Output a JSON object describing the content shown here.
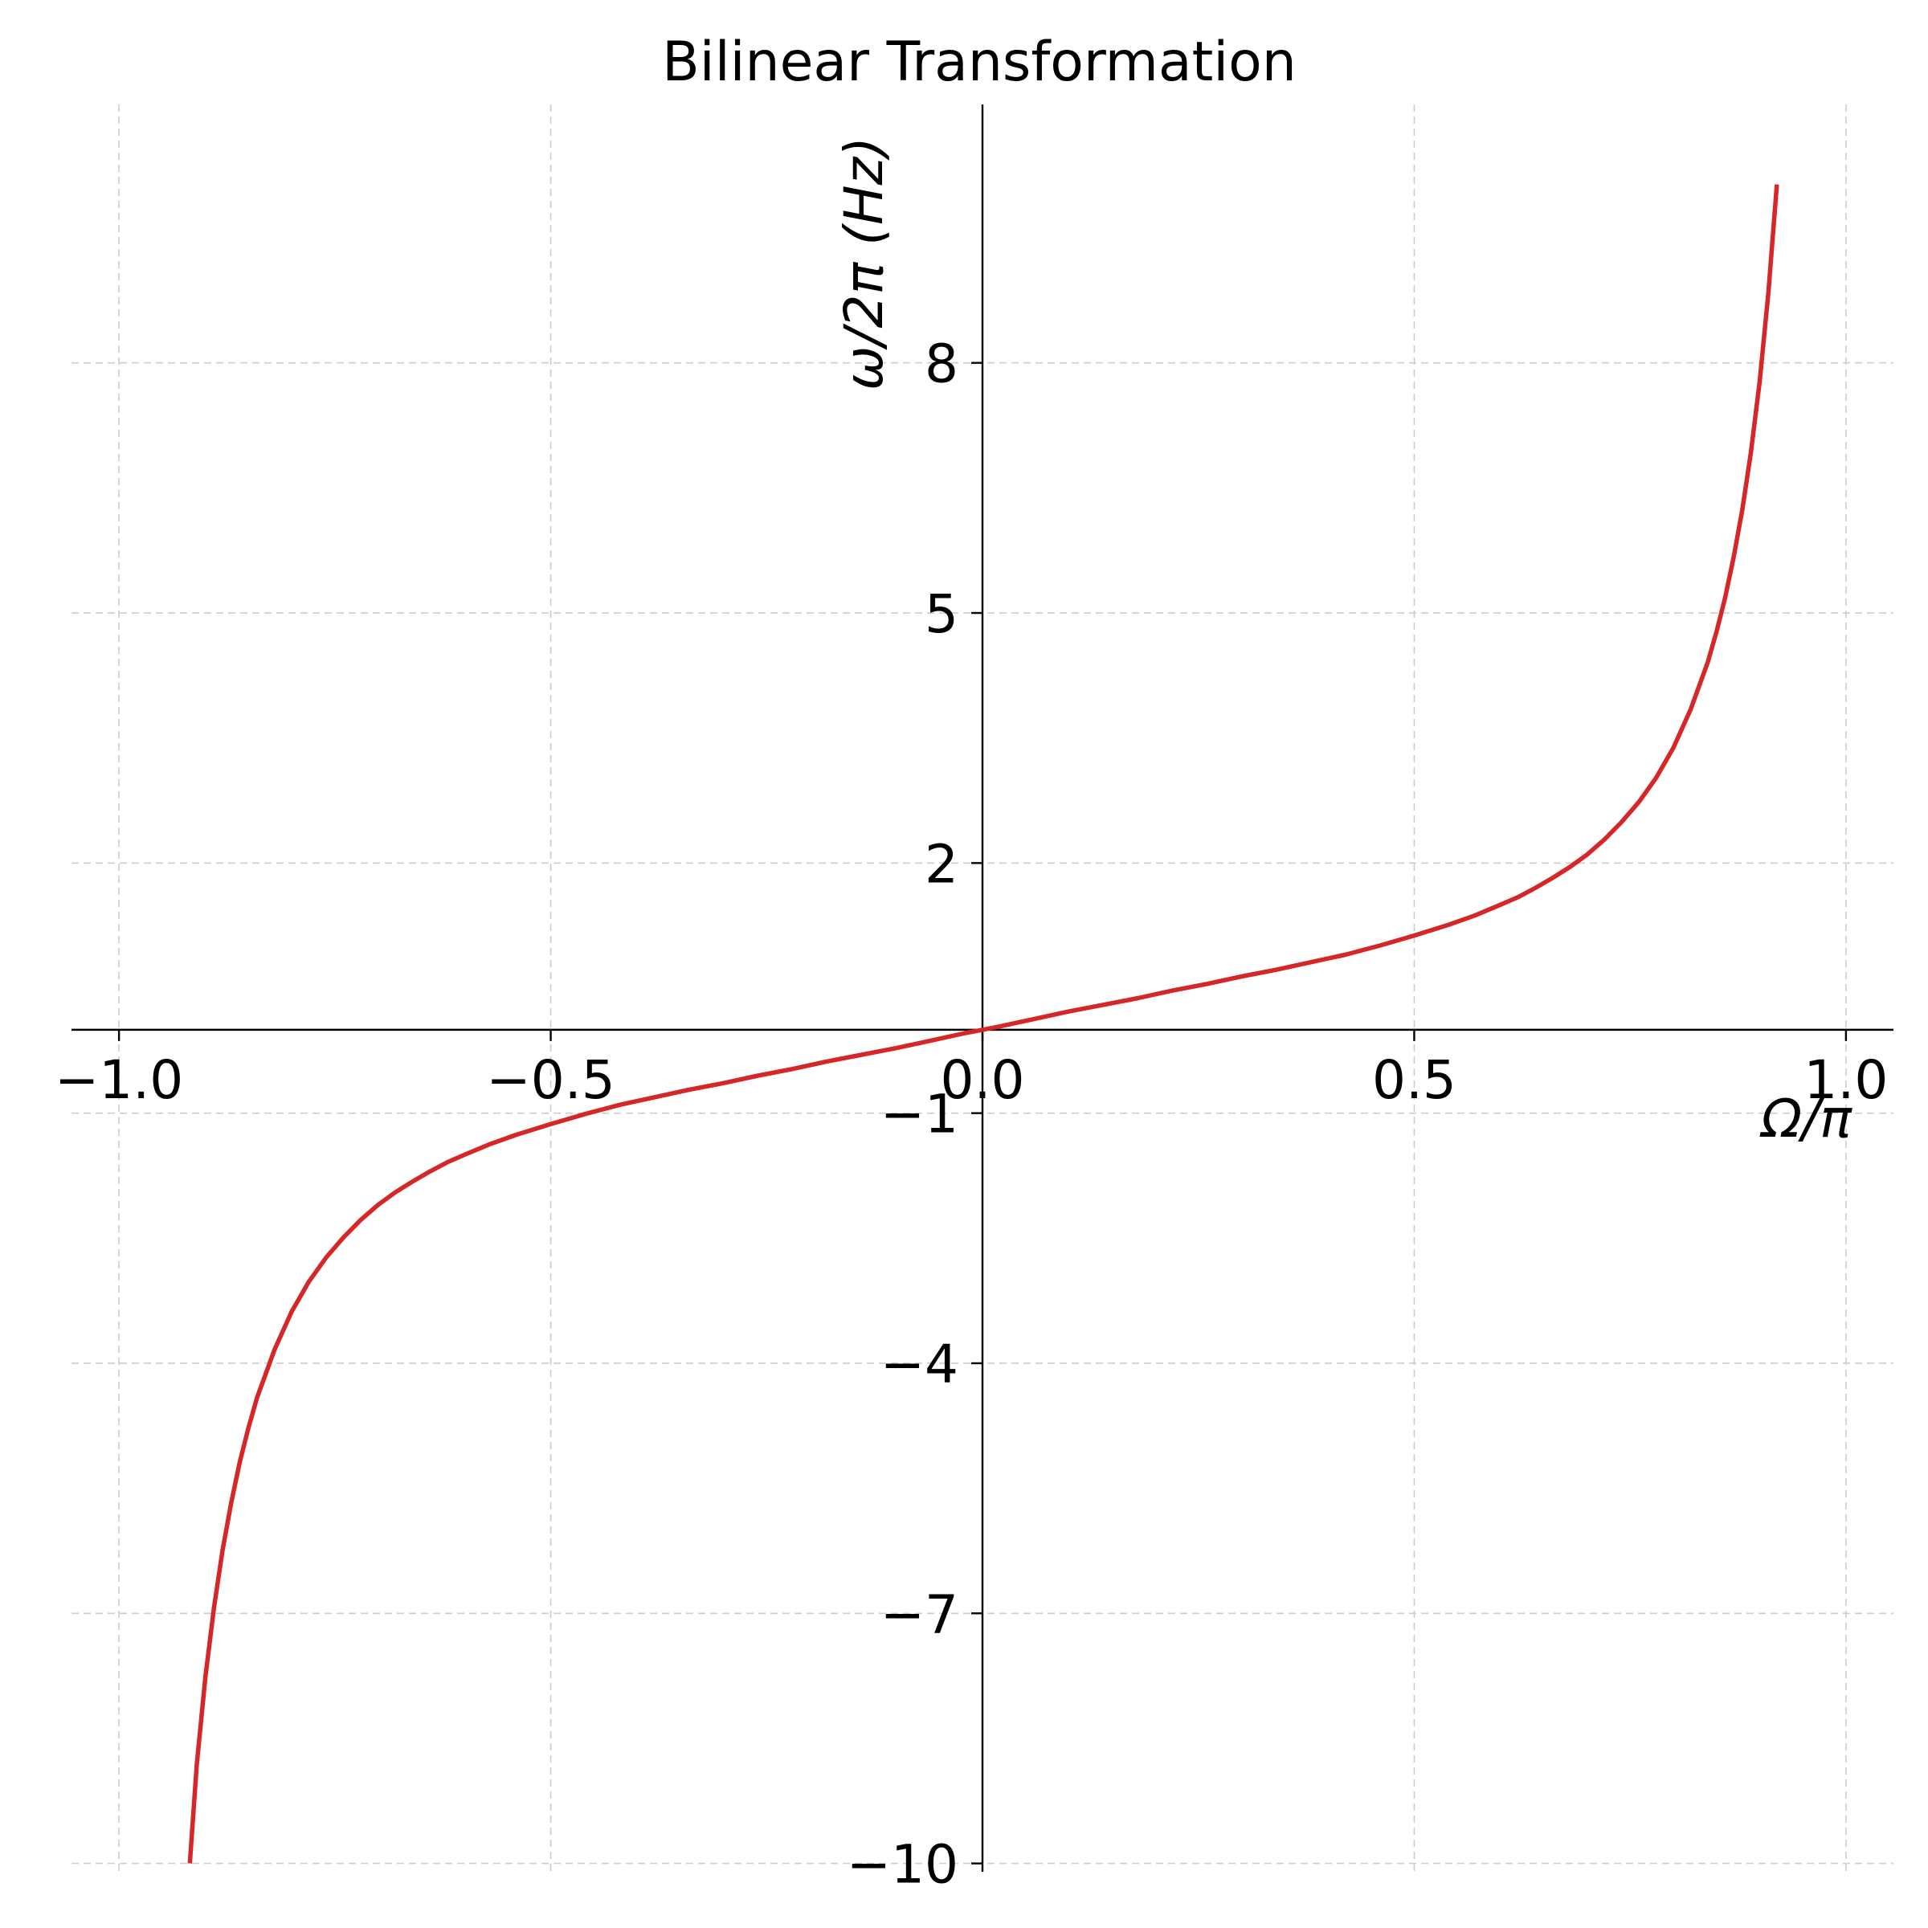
{
  "chart_data": {
    "type": "line",
    "title": "Bilinear Transformation",
    "xlabel": "Ω/π",
    "ylabel": "ω/2π (Hz)",
    "xlim": [
      -1.055,
      1.055
    ],
    "ylim": [
      -10.1,
      11.1
    ],
    "x_ticks": [
      -1.0,
      -0.5,
      0.0,
      0.5,
      1.0
    ],
    "x_tick_labels": [
      "−1.0",
      "−0.5",
      "0.0",
      "0.5",
      "1.0"
    ],
    "y_ticks": [
      -10,
      -7,
      -4,
      -1,
      2,
      5,
      8
    ],
    "y_tick_labels": [
      "−10",
      "−7",
      "−4",
      "−1",
      "2",
      "5",
      "8"
    ],
    "grid": true,
    "spines": "centered",
    "series": [
      {
        "color": "#d62728",
        "x": [
          -0.918,
          -0.91,
          -0.9,
          -0.89,
          -0.88,
          -0.87,
          -0.86,
          -0.85,
          -0.84,
          -0.82,
          -0.8,
          -0.78,
          -0.76,
          -0.74,
          -0.72,
          -0.7,
          -0.68,
          -0.66,
          -0.64,
          -0.62,
          -0.6,
          -0.57,
          -0.54,
          -0.5,
          -0.46,
          -0.42,
          -0.38,
          -0.34,
          -0.3,
          -0.26,
          -0.22,
          -0.18,
          -0.14,
          -0.1,
          -0.06,
          -0.02,
          0.0,
          0.02,
          0.06,
          0.1,
          0.14,
          0.18,
          0.22,
          0.26,
          0.3,
          0.34,
          0.38,
          0.42,
          0.46,
          0.5,
          0.54,
          0.57,
          0.6,
          0.62,
          0.64,
          0.66,
          0.68,
          0.7,
          0.72,
          0.74,
          0.76,
          0.78,
          0.8,
          0.82,
          0.84,
          0.85,
          0.86,
          0.87,
          0.88,
          0.89,
          0.9,
          0.91,
          0.92
        ],
        "y": [
          -10.0,
          -8.82,
          -7.77,
          -6.93,
          -6.24,
          -5.67,
          -5.18,
          -4.77,
          -4.41,
          -3.84,
          -3.38,
          -3.02,
          -2.73,
          -2.49,
          -2.28,
          -2.1,
          -1.95,
          -1.82,
          -1.7,
          -1.59,
          -1.5,
          -1.37,
          -1.26,
          -1.13,
          -1.01,
          -0.9,
          -0.81,
          -0.72,
          -0.64,
          -0.55,
          -0.47,
          -0.38,
          -0.3,
          -0.22,
          -0.13,
          -0.04,
          0.0,
          0.04,
          0.13,
          0.22,
          0.3,
          0.38,
          0.47,
          0.55,
          0.64,
          0.72,
          0.81,
          0.9,
          1.01,
          1.13,
          1.26,
          1.37,
          1.5,
          1.59,
          1.7,
          1.82,
          1.95,
          2.1,
          2.28,
          2.49,
          2.73,
          3.02,
          3.38,
          3.84,
          4.41,
          4.77,
          5.18,
          5.67,
          6.24,
          6.93,
          7.77,
          8.82,
          10.14
        ]
      }
    ]
  }
}
